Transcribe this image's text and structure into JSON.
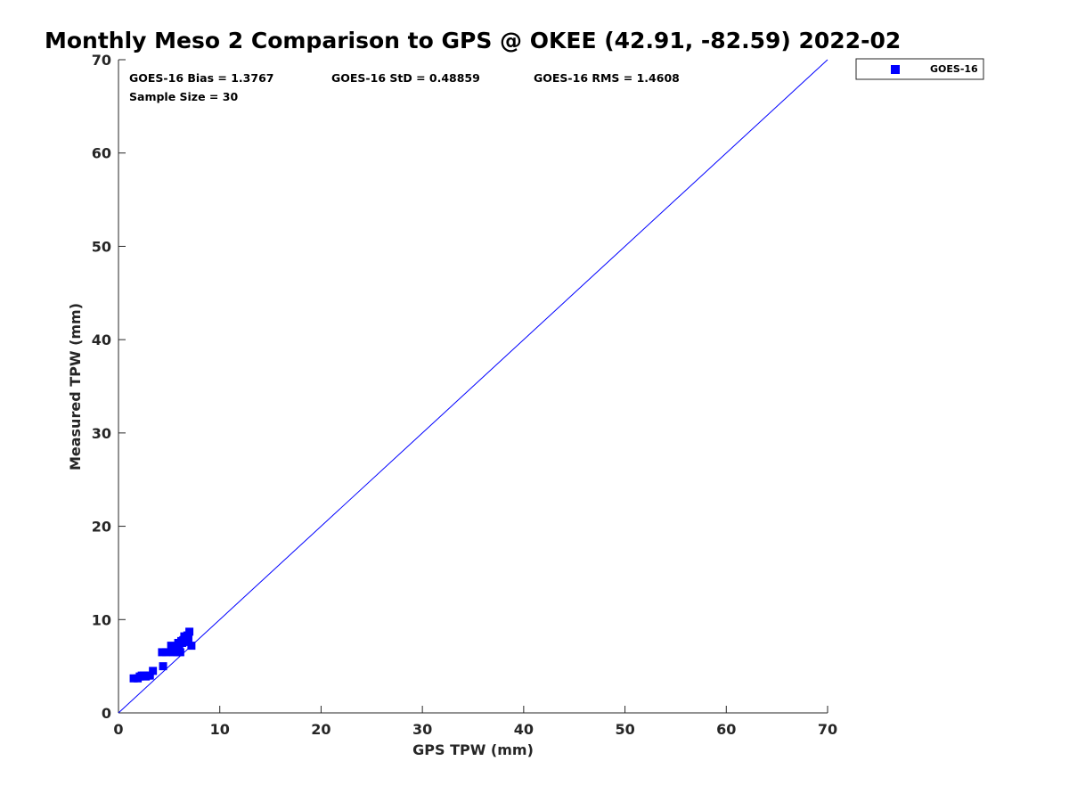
{
  "chart_data": {
    "type": "scatter",
    "title": "Monthly Meso 2 Comparison to GPS @ OKEE (42.91, -82.59) 2022-02",
    "xlabel": "GPS TPW (mm)",
    "ylabel": "Measured TPW (mm)",
    "xlim": [
      0,
      70
    ],
    "ylim": [
      0,
      70
    ],
    "xticks": [
      0,
      10,
      20,
      30,
      40,
      50,
      60,
      70
    ],
    "yticks": [
      0,
      10,
      20,
      30,
      40,
      50,
      60,
      70
    ],
    "grid": false,
    "legend_position": "outside top-right",
    "reference_line": {
      "from": [
        0,
        0
      ],
      "to": [
        70,
        70
      ],
      "color": "#0000ff"
    },
    "stats": {
      "bias": "GOES-16 Bias = 1.3767",
      "std": "GOES-16 StD = 0.48859",
      "rms": "GOES-16 RMS = 1.4608",
      "sample": "Sample Size = 30"
    },
    "series": [
      {
        "name": "GOES-16",
        "color": "#0000ff",
        "marker": "square",
        "points": [
          [
            1.5,
            3.7
          ],
          [
            1.9,
            3.7
          ],
          [
            2.1,
            3.9
          ],
          [
            2.3,
            4.0
          ],
          [
            2.5,
            4.0
          ],
          [
            2.7,
            3.9
          ],
          [
            2.9,
            4.0
          ],
          [
            3.1,
            4.0
          ],
          [
            3.4,
            4.5
          ],
          [
            4.3,
            6.5
          ],
          [
            4.4,
            5.0
          ],
          [
            4.7,
            6.5
          ],
          [
            5.2,
            7.2
          ],
          [
            5.4,
            6.5
          ],
          [
            5.5,
            7.0
          ],
          [
            5.7,
            7.0
          ],
          [
            5.8,
            6.5
          ],
          [
            5.9,
            7.5
          ],
          [
            6.0,
            7.2
          ],
          [
            6.1,
            6.5
          ],
          [
            6.2,
            7.7
          ],
          [
            6.3,
            7.5
          ],
          [
            6.4,
            7.8
          ],
          [
            6.5,
            8.2
          ],
          [
            6.6,
            7.6
          ],
          [
            6.7,
            8.0
          ],
          [
            6.8,
            8.3
          ],
          [
            6.9,
            7.9
          ],
          [
            7.0,
            8.7
          ],
          [
            7.2,
            7.2
          ]
        ]
      }
    ]
  }
}
